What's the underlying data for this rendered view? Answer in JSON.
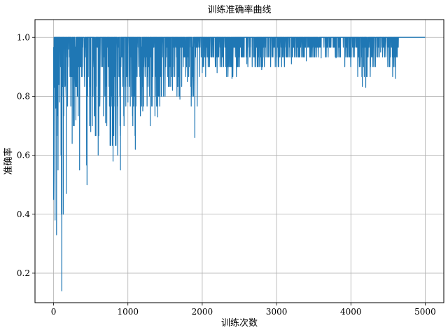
{
  "chart_data": {
    "type": "line",
    "title": "训练准确率曲线",
    "xlabel": "训练次数",
    "ylabel": "准确率",
    "xlim": [
      -250,
      5250
    ],
    "ylim": [
      0.1,
      1.06
    ],
    "grid": true,
    "xticks": [
      0,
      1000,
      2000,
      3000,
      4000,
      5000
    ],
    "xtick_labels": [
      "0",
      "1000",
      "2000",
      "3000",
      "4000",
      "5000"
    ],
    "yticks": [
      0.2,
      0.4,
      0.6,
      0.8,
      1.0
    ],
    "ytick_labels": [
      "0.2",
      "0.4",
      "0.6",
      "0.8",
      "1.0"
    ],
    "series": [
      {
        "color": "#1f77b4",
        "description_points": {
          "x": [
            0,
            10,
            20,
            30,
            40,
            50,
            60,
            70,
            80,
            90,
            100,
            110,
            120,
            130,
            150,
            170,
            200,
            250,
            300,
            350,
            400,
            450,
            500,
            600,
            700,
            800,
            900,
            1000,
            1100,
            1200,
            1300,
            1400,
            1500,
            1600,
            1700,
            1800,
            1900,
            2000,
            2200,
            2400,
            2600,
            2800,
            3000,
            3200,
            3400,
            3600,
            3800,
            4000,
            4200,
            4400,
            4600,
            4650,
            4700,
            5000
          ],
          "y": [
            0.45,
            0.83,
            0.38,
            0.76,
            0.33,
            0.87,
            0.55,
            0.84,
            0.78,
            1.0,
            0.6,
            0.14,
            0.95,
            0.4,
            0.88,
            0.47,
            0.96,
            0.64,
            0.72,
            0.55,
            1.0,
            0.5,
            0.68,
            0.6,
            0.71,
            0.58,
            0.55,
            0.78,
            0.62,
            0.75,
            0.7,
            0.73,
            0.8,
            0.82,
            0.79,
            0.85,
            0.66,
            0.88,
            0.88,
            0.86,
            0.91,
            0.89,
            0.9,
            0.91,
            0.92,
            0.93,
            0.93,
            0.9,
            0.83,
            0.95,
            0.86,
            1.0,
            1.0,
            1.0
          ]
        }
      }
    ]
  }
}
